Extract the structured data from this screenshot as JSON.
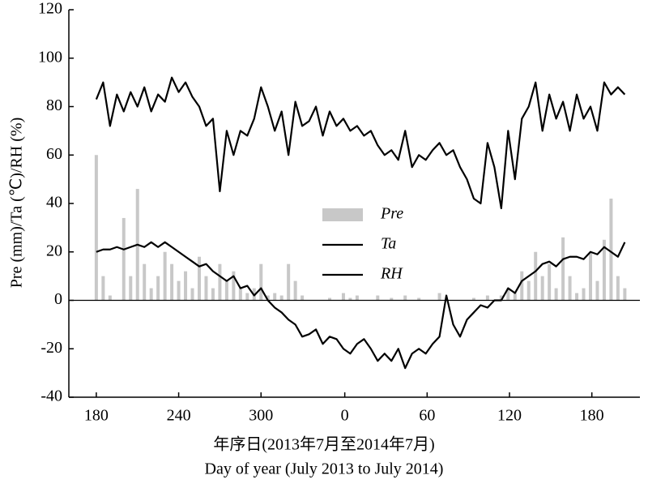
{
  "chart_data": {
    "type": "combo",
    "x_label": "年序日(2013年7月至2014年7月)",
    "x_label_en": "Day of year (July 2013 to July 2014)",
    "y_label": "Pre (mm)/Ta (℃)/RH (%)",
    "x": [
      180,
      185,
      190,
      195,
      200,
      205,
      210,
      215,
      220,
      225,
      230,
      235,
      240,
      245,
      250,
      255,
      260,
      265,
      270,
      275,
      280,
      285,
      290,
      295,
      300,
      305,
      310,
      315,
      320,
      325,
      330,
      335,
      340,
      345,
      350,
      355,
      360,
      365,
      370,
      375,
      380,
      385,
      390,
      395,
      400,
      405,
      410,
      415,
      420,
      425,
      430,
      435,
      440,
      445,
      450,
      455,
      460,
      465,
      470,
      475,
      480,
      485,
      490,
      495,
      500,
      505,
      510,
      515,
      520,
      525,
      530,
      535,
      540,
      545,
      550,
      555,
      560,
      565
    ],
    "series": [
      {
        "name": "Pre",
        "kind": "bar",
        "color": "#c8c8c8",
        "values": [
          60,
          10,
          2,
          0,
          34,
          10,
          46,
          15,
          5,
          10,
          20,
          15,
          8,
          12,
          5,
          18,
          10,
          5,
          15,
          8,
          12,
          5,
          3,
          5,
          15,
          2,
          3,
          2,
          15,
          8,
          2,
          0,
          0,
          0,
          1,
          0,
          3,
          1,
          2,
          0,
          0,
          2,
          0,
          1,
          0,
          2,
          0,
          1,
          0,
          0,
          3,
          0,
          0,
          0,
          0,
          1,
          0,
          2,
          0,
          2,
          5,
          3,
          12,
          8,
          20,
          10,
          15,
          5,
          26,
          10,
          3,
          5,
          20,
          8,
          25,
          42,
          10,
          5
        ]
      },
      {
        "name": "Ta",
        "kind": "line",
        "color": "#000000",
        "values": [
          20,
          21,
          21,
          22,
          21,
          22,
          23,
          22,
          24,
          22,
          24,
          22,
          20,
          18,
          16,
          14,
          15,
          12,
          10,
          8,
          10,
          5,
          6,
          2,
          5,
          0,
          -3,
          -5,
          -8,
          -10,
          -15,
          -14,
          -12,
          -18,
          -15,
          -16,
          -20,
          -22,
          -18,
          -16,
          -20,
          -25,
          -22,
          -25,
          -20,
          -28,
          -22,
          -20,
          -22,
          -18,
          -15,
          2,
          -10,
          -15,
          -8,
          -5,
          -2,
          -3,
          0,
          0,
          5,
          3,
          8,
          10,
          12,
          15,
          16,
          14,
          17,
          18,
          18,
          17,
          20,
          19,
          22,
          20,
          18,
          24
        ]
      },
      {
        "name": "RH",
        "kind": "line",
        "color": "#000000",
        "values": [
          83,
          90,
          72,
          85,
          78,
          86,
          80,
          88,
          78,
          85,
          82,
          92,
          86,
          90,
          84,
          80,
          72,
          75,
          45,
          70,
          60,
          70,
          68,
          75,
          88,
          80,
          70,
          78,
          60,
          82,
          72,
          74,
          80,
          68,
          78,
          72,
          75,
          70,
          72,
          68,
          70,
          64,
          60,
          62,
          58,
          70,
          55,
          60,
          58,
          62,
          65,
          60,
          62,
          55,
          50,
          42,
          40,
          65,
          55,
          38,
          70,
          50,
          75,
          80,
          90,
          70,
          85,
          75,
          82,
          70,
          85,
          75,
          80,
          70,
          90,
          85,
          88,
          85
        ]
      }
    ],
    "xlim": [
      160,
      576
    ],
    "xticks": [
      {
        "value": 180,
        "label": "180"
      },
      {
        "value": 240,
        "label": "240"
      },
      {
        "value": 300,
        "label": "300"
      },
      {
        "value": 361,
        "label": "0"
      },
      {
        "value": 421,
        "label": "60"
      },
      {
        "value": 481,
        "label": "120"
      },
      {
        "value": 541,
        "label": "180"
      }
    ],
    "ylim": [
      -40,
      120
    ],
    "yticks": [
      -40,
      -20,
      0,
      20,
      40,
      60,
      80,
      100,
      120
    ]
  }
}
